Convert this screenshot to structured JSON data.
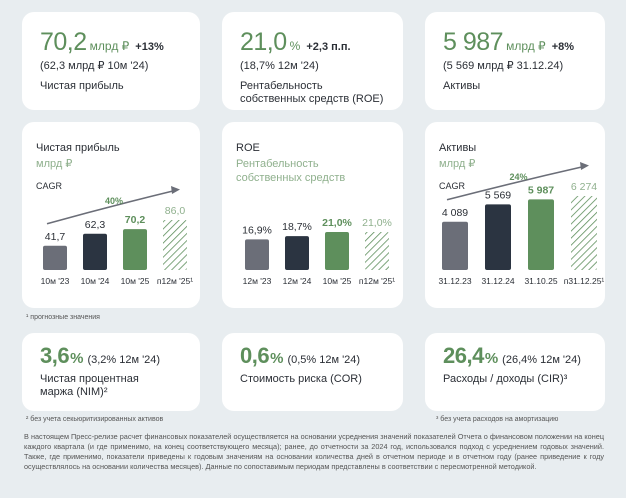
{
  "kpi_top": [
    {
      "value": "70,2",
      "unit": "млрд ₽",
      "change": "+13%",
      "comparison": "(62,3 млрд ₽ 10м '24)",
      "label": "Чистая прибыль"
    },
    {
      "value": "21,0",
      "unit": "%",
      "change": "+2,3 п.п.",
      "comparison": "(18,7% 12м '24)",
      "label": "Рентабельность собственных средств (ROE)"
    },
    {
      "value": "5 987",
      "unit": "млрд ₽",
      "change": "+8%",
      "comparison": "(5 569 млрд ₽ 31.12.24)",
      "label": "Активы"
    }
  ],
  "chart_data": [
    {
      "type": "bar",
      "title": "Чистая прибыль",
      "subtitle": "млрд ₽",
      "cagr_label": "CAGR",
      "cagr": "40%",
      "categories": [
        "10м '23",
        "10м '24",
        "10м '25",
        "п12м '25¹"
      ],
      "values": [
        41.7,
        62.3,
        70.2,
        86.0
      ],
      "value_labels": [
        "41,7",
        "62,3",
        "70,2",
        "86,0"
      ],
      "colors": [
        "#6b6e78",
        "#2b3441",
        "#5e8f5c",
        "#5e8f5c"
      ],
      "hatched": [
        false,
        false,
        false,
        true
      ]
    },
    {
      "type": "bar",
      "title": "ROE",
      "subtitle": "Рентабельность собственных средств",
      "categories": [
        "12м '23",
        "12м '24",
        "10м '25",
        "п12м '25¹"
      ],
      "values": [
        16.9,
        18.7,
        21.0,
        21.0
      ],
      "value_labels": [
        "16,9%",
        "18,7%",
        "21,0%",
        "21,0%"
      ],
      "colors": [
        "#6b6e78",
        "#2b3441",
        "#5e8f5c",
        "#5e8f5c"
      ],
      "hatched": [
        false,
        false,
        false,
        true
      ]
    },
    {
      "type": "bar",
      "title": "Активы",
      "subtitle": "млрд ₽",
      "cagr_label": "CAGR",
      "cagr": "24%",
      "categories": [
        "31.12.23",
        "31.12.24",
        "31.10.25",
        "п31.12.25¹"
      ],
      "values": [
        4089,
        5569,
        5987,
        6274
      ],
      "value_labels": [
        "4 089",
        "5 569",
        "5 987",
        "6 274"
      ],
      "colors": [
        "#6b6e78",
        "#2b3441",
        "#5e8f5c",
        "#5e8f5c"
      ],
      "hatched": [
        false,
        false,
        false,
        true
      ]
    }
  ],
  "footnote_1": "¹ прогнозные значения",
  "kpi_bottom": [
    {
      "value": "3,6",
      "unit": "%",
      "comparison": "(3,2% 12м '24)",
      "label": "Чистая процентная маржа (NIM)²"
    },
    {
      "value": "0,6",
      "unit": "%",
      "comparison": "(0,5% 12м '24)",
      "label": "Стоимость риска (COR)"
    },
    {
      "value": "26,4",
      "unit": "%",
      "comparison": "(26,4% 12м '24)",
      "label": "Расходы / доходы (CIR)³"
    }
  ],
  "footnote_2": "² без учета секьюритизированных активов",
  "footnote_3": "³ без учета расходов на амортизацию",
  "methodology": "В настоящем Пресс-релизе расчет финансовых показателей осуществляется на основании усреднения значений показателей Отчета о финансовом положении на конец каждого квартала (и где применимо, на конец соответствующего месяца); ранее, до отчетности за 2024 год, использовался подход с усреднением годовых значений. Также, где применимо, показатели приведены к годовым значениям на основании количества дней в отчетном периоде и в отчетном году (ранее приведение к году осуществлялось на основании количества месяцев). Данные по сопоставимым периодам представлены в соответствии с пересмотренной методикой."
}
